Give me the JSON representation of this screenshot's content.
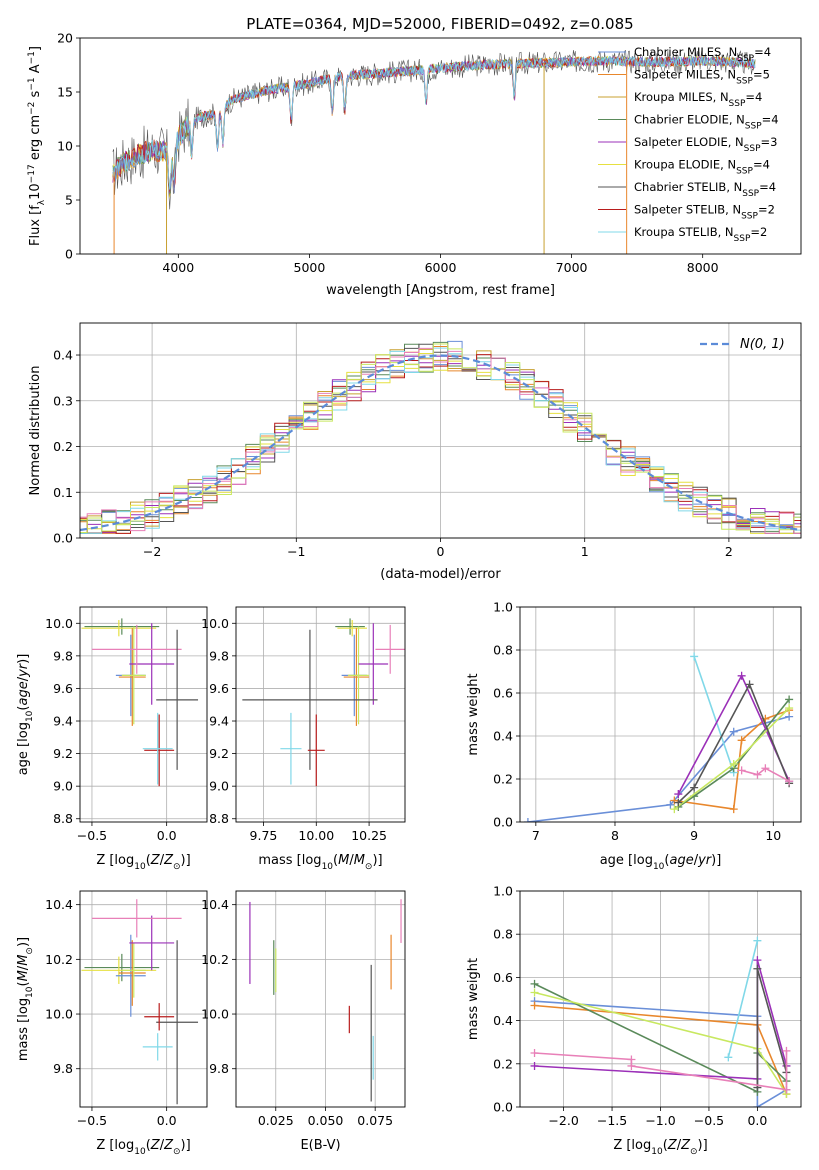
{
  "figure": {
    "title": "PLATE=0364, MJD=52000, FIBERID=0492, z=0.085"
  },
  "colors": {
    "chabrier_miles": "#6a8fd8",
    "salpeter_miles": "#e8872c",
    "kroupa_miles": "#c8a030",
    "chabrier_elodie": "#5a8a5a",
    "salpeter_elodie": "#9b30b8",
    "kroupa_elodie": "#e6e040",
    "chabrier_stelib": "#555555",
    "salpeter_stelib": "#b81c1c",
    "kroupa_stelib": "#80d8e8",
    "pink": "#e880b8",
    "lime": "#c8e860",
    "gaussian": "#5b8bd8",
    "grid": "#b0b0b0"
  },
  "chart_data": [
    {
      "id": "spectrum",
      "type": "line",
      "xlabel": "wavelength [Angstrom, rest frame]",
      "ylabel": "Flux [f_λ10^-17 erg cm^-2 s^-1 A^-1]",
      "xlim": [
        3250,
        8750
      ],
      "ylim": [
        0,
        20
      ],
      "xticks": [
        4000,
        5000,
        6000,
        7000,
        8000
      ],
      "yticks": [
        0,
        5,
        10,
        15,
        20
      ],
      "grid": false,
      "legend_position": "right",
      "continuum": {
        "x": [
          3500,
          3600,
          3700,
          3800,
          3900,
          3950,
          4000,
          4100,
          4200,
          4300,
          4400,
          4500,
          4700,
          5000,
          5200,
          5500,
          5800,
          6000,
          6300,
          6500,
          6800,
          7000,
          7300,
          7500,
          7800,
          8000,
          8200,
          8400
        ],
        "y": [
          7.5,
          8.6,
          9.2,
          9.6,
          9.5,
          8.8,
          10.8,
          12.4,
          12.8,
          13.0,
          14.2,
          14.6,
          15.2,
          15.8,
          16.4,
          16.7,
          17.0,
          17.2,
          17.5,
          17.6,
          17.7,
          17.8,
          17.9,
          17.8,
          17.8,
          17.9,
          17.8,
          17.6
        ]
      },
      "series": [
        {
          "name": "Chabrier MILES, N_SSP=4",
          "color_key": "chabrier_miles"
        },
        {
          "name": "Salpeter MILES, N_SSP=5",
          "color_key": "salpeter_miles"
        },
        {
          "name": "Kroupa MILES, N_SSP=4",
          "color_key": "kroupa_miles"
        },
        {
          "name": "Chabrier ELODIE, N_SSP=4",
          "color_key": "chabrier_elodie"
        },
        {
          "name": "Salpeter ELODIE, N_SSP=3",
          "color_key": "salpeter_elodie"
        },
        {
          "name": "Kroupa ELODIE, N_SSP=4",
          "color_key": "kroupa_elodie"
        },
        {
          "name": "Chabrier STELIB, N_SSP=4",
          "color_key": "chabrier_stelib"
        },
        {
          "name": "Salpeter STELIB, N_SSP=2",
          "color_key": "salpeter_stelib"
        },
        {
          "name": "Kroupa STELIB, N_SSP=2",
          "color_key": "kroupa_stelib"
        }
      ],
      "legend": [
        {
          "pre": "Chabrier MILES, N",
          "sub": "SSP",
          "post": "=4",
          "color_key": "chabrier_miles"
        },
        {
          "pre": "Salpeter MILES, N",
          "sub": "SSP",
          "post": "=5",
          "color_key": "salpeter_miles"
        },
        {
          "pre": "Kroupa MILES, N",
          "sub": "SSP",
          "post": "=4",
          "color_key": "kroupa_miles"
        },
        {
          "pre": "Chabrier ELODIE, N",
          "sub": "SSP",
          "post": "=4",
          "color_key": "chabrier_elodie"
        },
        {
          "pre": "Salpeter ELODIE, N",
          "sub": "SSP",
          "post": "=3",
          "color_key": "salpeter_elodie"
        },
        {
          "pre": "Kroupa ELODIE, N",
          "sub": "SSP",
          "post": "=4",
          "color_key": "kroupa_elodie"
        },
        {
          "pre": "Chabrier STELIB, N",
          "sub": "SSP",
          "post": "=4",
          "color_key": "chabrier_stelib"
        },
        {
          "pre": "Salpeter STELIB, N",
          "sub": "SSP",
          "post": "=2",
          "color_key": "salpeter_stelib"
        },
        {
          "pre": "Kroupa STELIB, N",
          "sub": "SSP",
          "post": "=2",
          "color_key": "kroupa_stelib"
        }
      ],
      "drop_lines": [
        {
          "x": 3510,
          "color_key": "salpeter_miles"
        },
        {
          "x": 3910,
          "color_key": "kroupa_miles"
        },
        {
          "x": 6790,
          "color_key": "kroupa_miles"
        },
        {
          "x": 7420,
          "color_key": "salpeter_miles"
        }
      ]
    },
    {
      "id": "residuals",
      "type": "histogram",
      "xlabel": "(data-model)/error",
      "ylabel": "Normed distribution",
      "xlim": [
        -2.5,
        2.5
      ],
      "ylim": [
        0,
        0.47
      ],
      "xticks": [
        -2,
        -1,
        0,
        1,
        2
      ],
      "yticks": [
        0.0,
        0.1,
        0.2,
        0.3,
        0.4
      ],
      "grid": true,
      "legend_position": "top-right",
      "gaussian_label": "N(0, 1)",
      "bin_width": 0.1
    },
    {
      "id": "age_vs_Z",
      "type": "scatter",
      "xlabel": "Z [log10(Z/Z⊙)]",
      "ylabel": "age  [log10(age/yr)]",
      "xlim": [
        -0.58,
        0.27
      ],
      "ylim": [
        8.78,
        10.1
      ],
      "xticks": [
        -0.5,
        0.0
      ],
      "yticks": [
        8.8,
        9.0,
        9.2,
        9.4,
        9.6,
        9.8,
        10.0
      ],
      "grid": true,
      "points": [
        {
          "x": -0.3,
          "y": 9.98,
          "xerr": 0.25,
          "yerr": 0.05,
          "color_key": "chabrier_elodie"
        },
        {
          "x": -0.32,
          "y": 9.97,
          "xerr": 0.25,
          "yerr": 0.05,
          "color_key": "kroupa_elodie"
        },
        {
          "x": -0.24,
          "y": 9.68,
          "xerr": 0.1,
          "yerr": 0.25,
          "color_key": "chabrier_miles"
        },
        {
          "x": -0.23,
          "y": 9.67,
          "xerr": 0.09,
          "yerr": 0.3,
          "color_key": "salpeter_miles"
        },
        {
          "x": -0.22,
          "y": 9.68,
          "xerr": 0.08,
          "yerr": 0.3,
          "color_key": "lime"
        },
        {
          "x": -0.1,
          "y": 9.75,
          "xerr": 0.15,
          "yerr": 0.25,
          "color_key": "salpeter_elodie"
        },
        {
          "x": -0.2,
          "y": 9.84,
          "xerr": 0.3,
          "yerr": 0.15,
          "color_key": "pink"
        },
        {
          "x": 0.07,
          "y": 9.53,
          "xerr": 0.14,
          "yerr": 0.43,
          "color_key": "chabrier_stelib"
        },
        {
          "x": -0.05,
          "y": 9.22,
          "xerr": 0.1,
          "yerr": 0.22,
          "color_key": "salpeter_stelib"
        },
        {
          "x": -0.06,
          "y": 9.23,
          "xerr": 0.1,
          "yerr": 0.22,
          "color_key": "kroupa_stelib"
        }
      ]
    },
    {
      "id": "age_vs_mass",
      "type": "scatter",
      "xlabel": "mass [log10(M/M⊙)]",
      "ylabel": "",
      "xlim": [
        9.62,
        10.42
      ],
      "ylim": [
        8.78,
        10.1
      ],
      "xticks": [
        9.75,
        10.0,
        10.25
      ],
      "yticks": [
        8.8,
        9.0,
        9.2,
        9.4,
        9.6,
        9.8,
        10.0
      ],
      "grid": true,
      "points": [
        {
          "x": 10.16,
          "y": 9.98,
          "xerr": 0.07,
          "yerr": 0.05,
          "color_key": "chabrier_elodie"
        },
        {
          "x": 10.17,
          "y": 9.97,
          "xerr": 0.07,
          "yerr": 0.05,
          "color_key": "kroupa_elodie"
        },
        {
          "x": 10.18,
          "y": 9.68,
          "xerr": 0.06,
          "yerr": 0.25,
          "color_key": "chabrier_miles"
        },
        {
          "x": 10.19,
          "y": 9.67,
          "xerr": 0.06,
          "yerr": 0.3,
          "color_key": "salpeter_miles"
        },
        {
          "x": 10.2,
          "y": 9.68,
          "xerr": 0.05,
          "yerr": 0.3,
          "color_key": "lime"
        },
        {
          "x": 10.27,
          "y": 9.75,
          "xerr": 0.07,
          "yerr": 0.25,
          "color_key": "salpeter_elodie"
        },
        {
          "x": 10.35,
          "y": 9.84,
          "xerr": 0.07,
          "yerr": 0.15,
          "color_key": "pink"
        },
        {
          "x": 9.97,
          "y": 9.53,
          "xerr": 0.32,
          "yerr": 0.43,
          "color_key": "chabrier_stelib"
        },
        {
          "x": 10.0,
          "y": 9.22,
          "xerr": 0.04,
          "yerr": 0.22,
          "color_key": "salpeter_stelib"
        },
        {
          "x": 9.88,
          "y": 9.23,
          "xerr": 0.05,
          "yerr": 0.22,
          "color_key": "kroupa_stelib"
        }
      ]
    },
    {
      "id": "weight_vs_age",
      "type": "line",
      "xlabel": "age  [log10(age/yr)]",
      "ylabel": "mass weight",
      "xlim": [
        6.8,
        10.35
      ],
      "ylim": [
        0,
        1.0
      ],
      "xticks": [
        7,
        8,
        9,
        10
      ],
      "yticks": [
        0.0,
        0.2,
        0.4,
        0.6,
        0.8,
        1.0
      ],
      "grid": true,
      "series": [
        {
          "color_key": "chabrier_miles",
          "x": [
            6.9,
            8.7,
            9.5,
            10.2
          ],
          "y": [
            0.0,
            0.08,
            0.42,
            0.49
          ]
        },
        {
          "color_key": "salpeter_miles",
          "x": [
            8.75,
            9.5,
            9.6,
            9.9,
            10.2
          ],
          "y": [
            0.1,
            0.06,
            0.38,
            0.48,
            0.52
          ]
        },
        {
          "color_key": "kroupa_stelib",
          "x": [
            9.0,
            9.5
          ],
          "y": [
            0.77,
            0.23
          ]
        },
        {
          "color_key": "chabrier_elodie",
          "x": [
            8.8,
            9.0,
            9.5,
            10.2
          ],
          "y": [
            0.07,
            0.12,
            0.25,
            0.57
          ]
        },
        {
          "color_key": "salpeter_elodie",
          "x": [
            8.8,
            9.6,
            10.2
          ],
          "y": [
            0.13,
            0.68,
            0.19
          ]
        },
        {
          "color_key": "lime",
          "x": [
            8.75,
            9.5,
            10.2
          ],
          "y": [
            0.06,
            0.27,
            0.53
          ]
        },
        {
          "color_key": "chabrier_stelib",
          "x": [
            8.8,
            9.0,
            9.7,
            10.2
          ],
          "y": [
            0.09,
            0.16,
            0.64,
            0.18
          ]
        },
        {
          "color_key": "pink",
          "x": [
            9.6,
            9.8,
            9.9,
            10.2
          ],
          "y": [
            0.24,
            0.22,
            0.25,
            0.19
          ]
        }
      ]
    },
    {
      "id": "mass_vs_Z",
      "type": "scatter",
      "xlabel": "Z [log10(Z/Z⊙)]",
      "ylabel": "mass [log10(M/M⊙)]",
      "xlim": [
        -0.58,
        0.27
      ],
      "ylim": [
        9.66,
        10.45
      ],
      "xticks": [
        -0.5,
        0.0
      ],
      "yticks": [
        9.8,
        10.0,
        10.2,
        10.4
      ],
      "grid": true,
      "points": [
        {
          "x": -0.3,
          "y": 10.17,
          "xerr": 0.25,
          "yerr": 0.05,
          "color_key": "chabrier_elodie"
        },
        {
          "x": -0.32,
          "y": 10.16,
          "xerr": 0.25,
          "yerr": 0.05,
          "color_key": "kroupa_elodie"
        },
        {
          "x": -0.24,
          "y": 10.14,
          "xerr": 0.1,
          "yerr": 0.15,
          "color_key": "chabrier_miles"
        },
        {
          "x": -0.23,
          "y": 10.15,
          "xerr": 0.09,
          "yerr": 0.12,
          "color_key": "salpeter_miles"
        },
        {
          "x": -0.22,
          "y": 10.16,
          "xerr": 0.08,
          "yerr": 0.1,
          "color_key": "lime"
        },
        {
          "x": -0.1,
          "y": 10.26,
          "xerr": 0.15,
          "yerr": 0.1,
          "color_key": "salpeter_elodie"
        },
        {
          "x": -0.2,
          "y": 10.35,
          "xerr": 0.3,
          "yerr": 0.07,
          "color_key": "pink"
        },
        {
          "x": 0.07,
          "y": 9.97,
          "xerr": 0.14,
          "yerr": 0.3,
          "color_key": "chabrier_stelib"
        },
        {
          "x": -0.05,
          "y": 9.99,
          "xerr": 0.1,
          "yerr": 0.05,
          "color_key": "salpeter_stelib"
        },
        {
          "x": -0.06,
          "y": 9.88,
          "xerr": 0.1,
          "yerr": 0.05,
          "color_key": "kroupa_stelib"
        }
      ]
    },
    {
      "id": "mass_vs_ebv",
      "type": "scatter",
      "xlabel": "E(B-V)",
      "ylabel": "",
      "xlim": [
        0.005,
        0.09
      ],
      "ylim": [
        9.66,
        10.45
      ],
      "xticks": [
        0.025,
        0.05,
        0.075
      ],
      "xticklabels": [
        "0.025",
        "0.050",
        "0.075"
      ],
      "yticks": [
        9.8,
        10.0,
        10.2,
        10.4
      ],
      "grid": true,
      "points": [
        {
          "x": 0.012,
          "y": 10.26,
          "xerr": 0,
          "yerr": 0.15,
          "color_key": "salpeter_elodie"
        },
        {
          "x": 0.024,
          "y": 10.17,
          "xerr": 0,
          "yerr": 0.1,
          "color_key": "chabrier_elodie"
        },
        {
          "x": 0.025,
          "y": 10.16,
          "xerr": 0,
          "yerr": 0.08,
          "color_key": "lime"
        },
        {
          "x": 0.062,
          "y": 9.98,
          "xerr": 0,
          "yerr": 0.05,
          "color_key": "salpeter_stelib"
        },
        {
          "x": 0.073,
          "y": 9.93,
          "xerr": 0,
          "yerr": 0.25,
          "color_key": "chabrier_stelib"
        },
        {
          "x": 0.074,
          "y": 9.84,
          "xerr": 0,
          "yerr": 0.08,
          "color_key": "kroupa_stelib"
        },
        {
          "x": 0.083,
          "y": 10.19,
          "xerr": 0,
          "yerr": 0.1,
          "color_key": "salpeter_miles"
        },
        {
          "x": 0.088,
          "y": 10.34,
          "xerr": 0,
          "yerr": 0.08,
          "color_key": "pink"
        }
      ]
    },
    {
      "id": "weight_vs_Z",
      "type": "line",
      "xlabel": "Z [log10(Z/Z⊙)]",
      "ylabel": "mass weight",
      "xlim": [
        -2.45,
        0.45
      ],
      "ylim": [
        0,
        1.0
      ],
      "xticks": [
        -2.0,
        -1.5,
        -1.0,
        -0.5,
        0.0
      ],
      "yticks": [
        0.0,
        0.2,
        0.4,
        0.6,
        0.8,
        1.0
      ],
      "grid": true,
      "series": [
        {
          "color_key": "chabrier_miles",
          "x": [
            -2.3,
            0.0,
            0.0,
            0.3
          ],
          "y": [
            0.49,
            0.42,
            0.0,
            0.08
          ]
        },
        {
          "color_key": "salpeter_miles",
          "x": [
            -2.3,
            0.0,
            0.3
          ],
          "y": [
            0.47,
            0.38,
            0.06
          ]
        },
        {
          "color_key": "kroupa_stelib",
          "x": [
            -0.3,
            0.0
          ],
          "y": [
            0.23,
            0.77
          ]
        },
        {
          "color_key": "chabrier_elodie",
          "x": [
            -2.3,
            0.0,
            0.0,
            0.3
          ],
          "y": [
            0.57,
            0.07,
            0.25,
            0.12
          ]
        },
        {
          "color_key": "salpeter_elodie",
          "x": [
            -2.3,
            0.0,
            0.0,
            0.3
          ],
          "y": [
            0.19,
            0.13,
            0.68,
            0.19
          ]
        },
        {
          "color_key": "lime",
          "x": [
            -2.3,
            0.0,
            0.3
          ],
          "y": [
            0.53,
            0.27,
            0.06
          ]
        },
        {
          "color_key": "chabrier_stelib",
          "x": [
            0.0,
            0.0,
            0.3
          ],
          "y": [
            0.09,
            0.64,
            0.16
          ]
        },
        {
          "color_key": "pink",
          "x": [
            -2.3,
            -1.3,
            -1.3,
            0.3,
            0.3
          ],
          "y": [
            0.25,
            0.22,
            0.19,
            0.08,
            0.26
          ]
        }
      ]
    }
  ]
}
